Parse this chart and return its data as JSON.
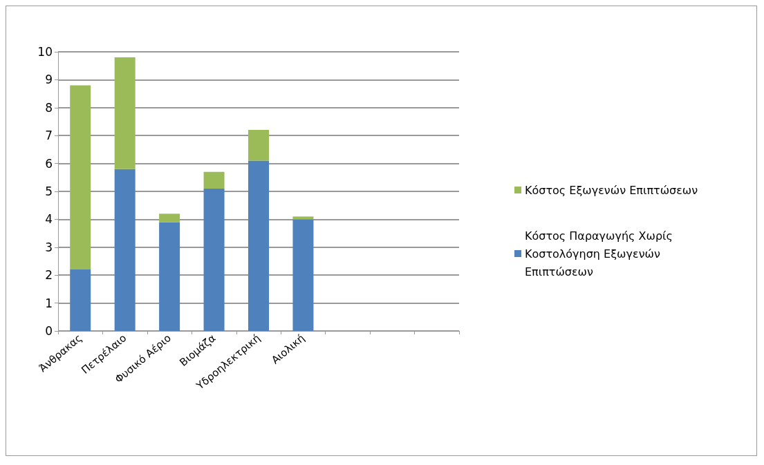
{
  "chart_data": {
    "type": "bar",
    "stacked": true,
    "categories": [
      "Άνθρακας",
      "Πετρέλαιο",
      "Φυσικό Αέριο",
      "Βιομάζα",
      "Υδροηλεκτρική",
      "Αιολική",
      null,
      null,
      null
    ],
    "series": [
      {
        "name": "Κόστος Παραγωγής Χωρίς Κοστολόγηση Εξωγενών Επιπτώσεων",
        "color": "#4f81bd",
        "values": [
          2.2,
          5.8,
          3.9,
          5.1,
          6.1,
          4.0,
          null,
          null,
          null
        ]
      },
      {
        "name": "Κόστος Εξωγενών Επιπτώσεων",
        "color": "#9bbb59",
        "values": [
          6.6,
          4.0,
          0.3,
          0.6,
          1.1,
          0.1,
          null,
          null,
          null
        ]
      }
    ],
    "ylim": [
      0,
      10
    ],
    "yticks": [
      0,
      1,
      2,
      3,
      4,
      5,
      6,
      7,
      8,
      9,
      10
    ],
    "grid": "y",
    "legend": "right"
  }
}
